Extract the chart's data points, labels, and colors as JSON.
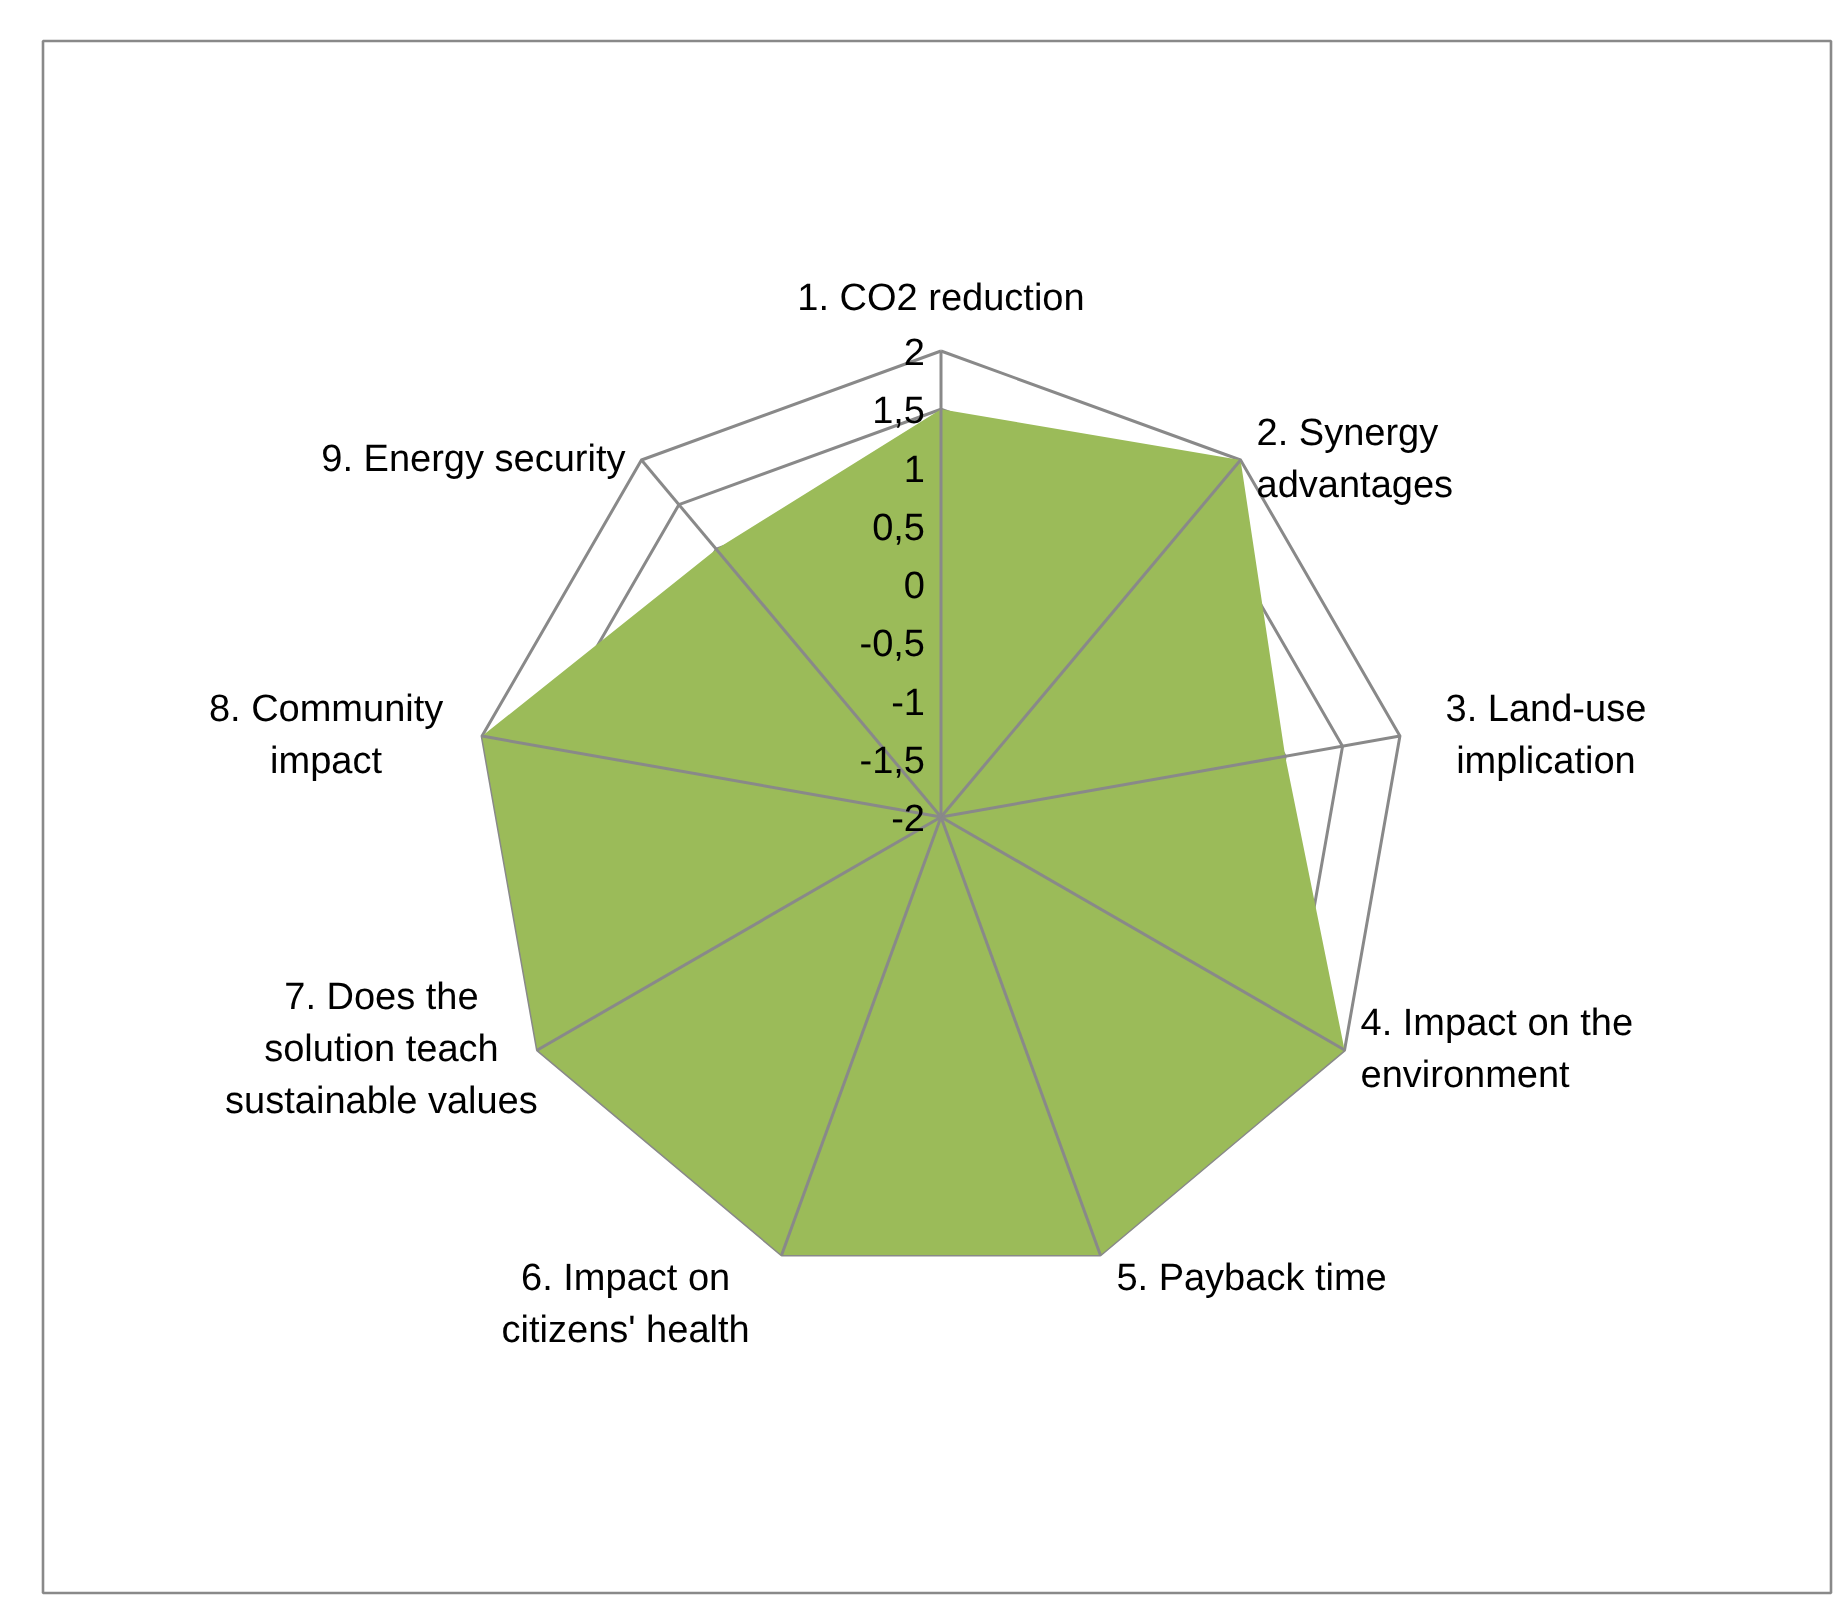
{
  "chart_data": {
    "type": "radar",
    "categories": [
      "1. CO2 reduction",
      "2. Synergy advantages",
      "3. Land-use implication",
      "4. Impact on the environment",
      "5. Payback time",
      "6. Impact on citizens' health",
      "7. Does the solution teach sustainable values",
      "8. Community impact",
      "9. Energy security"
    ],
    "series": [
      {
        "color": "#9bbb59",
        "values": [
          1.5,
          2,
          1,
          2,
          2,
          2,
          2,
          2,
          1
        ]
      }
    ],
    "ylim": [
      -2,
      2
    ],
    "yticks": [
      {
        "value": -2,
        "label": "-2"
      },
      {
        "value": -1.5,
        "label": "-1,5"
      },
      {
        "value": -1,
        "label": "-1"
      },
      {
        "value": -0.5,
        "label": "-0,5"
      },
      {
        "value": 0,
        "label": "0"
      },
      {
        "value": 0.5,
        "label": "0,5"
      },
      {
        "value": 1,
        "label": "1"
      },
      {
        "value": 1.5,
        "label": "1,5"
      },
      {
        "value": 2,
        "label": "2"
      }
    ],
    "grid": true
  }
}
